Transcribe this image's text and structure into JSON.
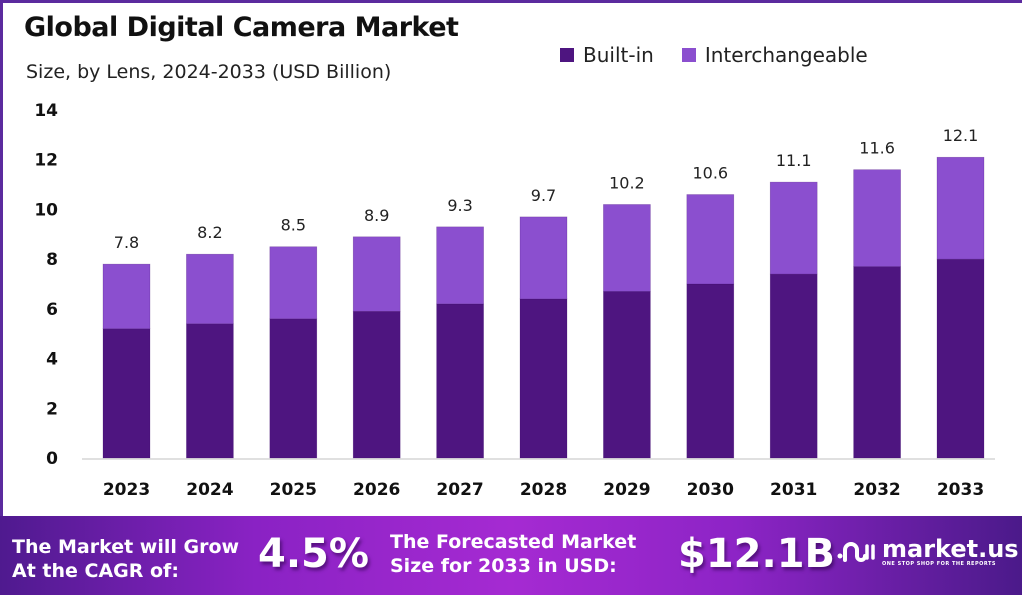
{
  "chart_data": {
    "type": "bar",
    "stacked": true,
    "title": "Global Digital Camera Market",
    "subtitle": "Size, by Lens, 2024-2033 (USD Billion)",
    "xlabel": "",
    "ylabel": "",
    "ylim": [
      0,
      14
    ],
    "yticks": [
      0,
      2,
      4,
      6,
      8,
      10,
      12,
      14
    ],
    "grid": false,
    "legend_position": "top-right",
    "categories": [
      "2023",
      "2024",
      "2025",
      "2026",
      "2027",
      "2028",
      "2029",
      "2030",
      "2031",
      "2032",
      "2033"
    ],
    "series": [
      {
        "name": "Built-in",
        "color": "#4e1580",
        "values": [
          5.2,
          5.4,
          5.6,
          5.9,
          6.2,
          6.4,
          6.7,
          7.0,
          7.4,
          7.7,
          8.0
        ]
      },
      {
        "name": "Interchangeable",
        "color": "#8b4fcf",
        "values": [
          2.6,
          2.8,
          2.9,
          3.0,
          3.1,
          3.3,
          3.5,
          3.6,
          3.7,
          3.9,
          4.1
        ]
      }
    ],
    "totals": [
      7.8,
      8.2,
      8.5,
      8.9,
      9.3,
      9.7,
      10.2,
      10.6,
      11.1,
      11.6,
      12.1
    ],
    "total_labels": [
      "7.8",
      "8.2",
      "8.5",
      "8.9",
      "9.3",
      "9.7",
      "10.2",
      "10.6",
      "11.1",
      "11.6",
      "12.1"
    ]
  },
  "footer": {
    "cagr_text_line1": "The Market will Grow",
    "cagr_text_line2": "At the CAGR of:",
    "cagr_value": "4.5%",
    "forecast_text_line1": "The Forecasted Market",
    "forecast_text_line2": "Size for 2033 in USD:",
    "forecast_value": "$12.1B",
    "logo_name": "market.us",
    "logo_tagline": "ONE STOP SHOP FOR THE REPORTS",
    "logo_icon": "market-us-logo-icon"
  }
}
